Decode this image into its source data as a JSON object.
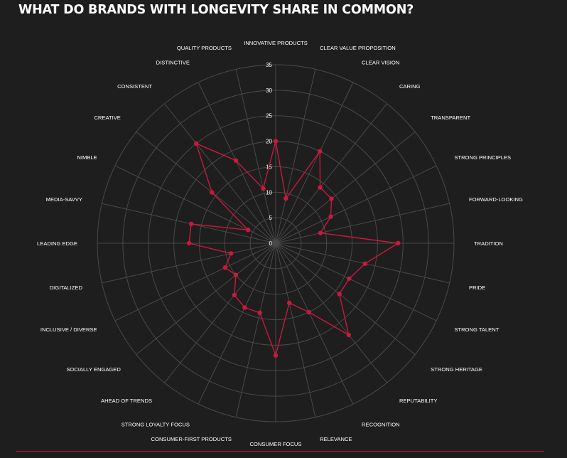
{
  "title": "WHAT DO BRANDS WITH LONGEVITY SHARE IN COMMON?",
  "colors": {
    "background": "#1f1e1e",
    "series": "#c8193e",
    "grid": "#4a4848",
    "text": "#ffffff",
    "rule": "#b3203f"
  },
  "chart_data": {
    "type": "radar",
    "title": "WHAT DO BRANDS WITH LONGEVITY SHARE IN COMMON?",
    "categories": [
      "INNOVATIVE PRODUCTS",
      "CLEAR VALUE PROPOSITION",
      "CLEAR VISION",
      "CARING",
      "TRANSPARENT",
      "STRONG PRINCIPLES",
      "FORWARD-LOOKING",
      "TRADITION",
      "PRIDE",
      "STRONG TALENT",
      "STRONG HERITAGE",
      "REPUTABILITY",
      "RECOGNITION",
      "RELEVANCE",
      "CONSUMER FOCUS",
      "CONSUMER-FIRST PRODUCTS",
      "STRONG LOYALTY FOCUS",
      "AHEAD OF TRENDS",
      "SOCIALLY ENGAGED",
      "INCLUSIVE / DIVERSE",
      "DIGITALIZED",
      "LEADING EDGE",
      "MEDIA-SAVVY",
      "NIMBLE",
      "CREATIVE",
      "CONSISTENT",
      "DISTINCTIVE",
      "QUALITY PRODUCTS"
    ],
    "values": [
      20,
      9,
      20,
      14,
      14,
      12,
      9,
      24,
      18,
      16,
      16,
      23,
      15,
      12,
      22,
      14,
      14,
      13,
      10,
      11,
      9,
      17,
      17,
      6,
      16,
      25,
      18,
      11
    ],
    "rlim": [
      0,
      35
    ],
    "rticks": [
      0,
      5,
      10,
      15,
      20,
      25,
      30,
      35
    ],
    "grid": true,
    "legend": "none"
  }
}
